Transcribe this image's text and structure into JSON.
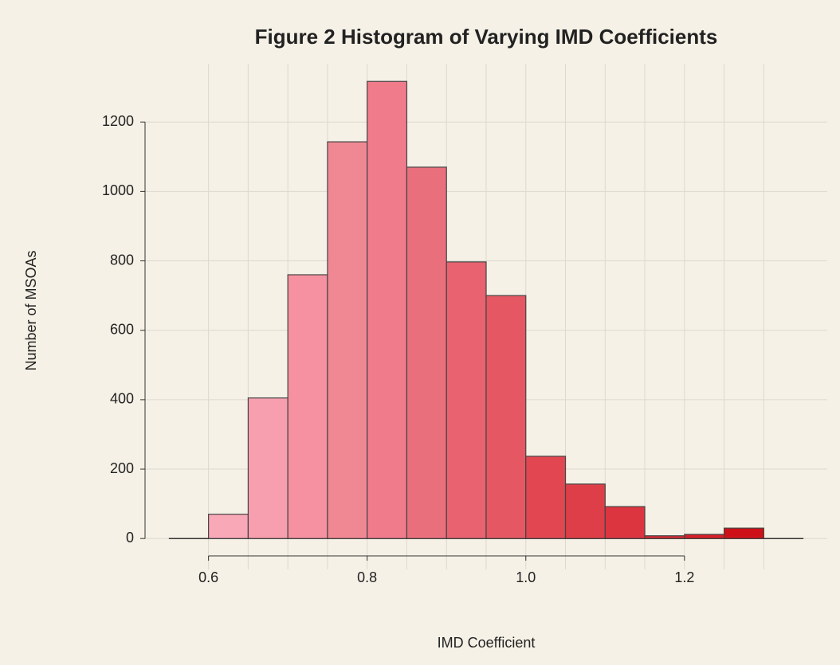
{
  "chart_data": {
    "type": "histogram",
    "title": "Figure 2 Histogram of Varying IMD Coefficients",
    "x_label": "IMD Coefficient",
    "y_label": "Number of MSOAs",
    "bins": [
      0.6,
      0.65,
      0.7,
      0.75,
      0.8,
      0.85,
      0.9,
      0.95,
      1.0,
      1.05,
      1.1,
      1.15,
      1.2,
      1.25,
      1.3
    ],
    "values": [
      70,
      405,
      760,
      1143,
      1317,
      1070,
      797,
      700,
      237,
      157,
      92,
      8,
      12,
      30
    ],
    "colors": [
      "#f9a8b8",
      "#f79fae",
      "#f591a0",
      "#f08894",
      "#ef7b8b",
      "#ea6f7d",
      "#e86270",
      "#e55863",
      "#e24751",
      "#de3e47",
      "#dc3540",
      "#d82a33",
      "#d4202a",
      "#ce1118"
    ],
    "xlim": [
      0.52,
      1.38
    ],
    "ylim": [
      -89,
      1368
    ],
    "xticks": [
      {
        "value": 0.6,
        "label": "0.6"
      },
      {
        "value": 0.8,
        "label": "0.8"
      },
      {
        "value": 1.0,
        "label": "1.0"
      },
      {
        "value": 1.2,
        "label": "1.2"
      }
    ],
    "yticks": [
      0,
      200,
      400,
      600,
      800,
      1000,
      1200
    ],
    "grid": true
  }
}
